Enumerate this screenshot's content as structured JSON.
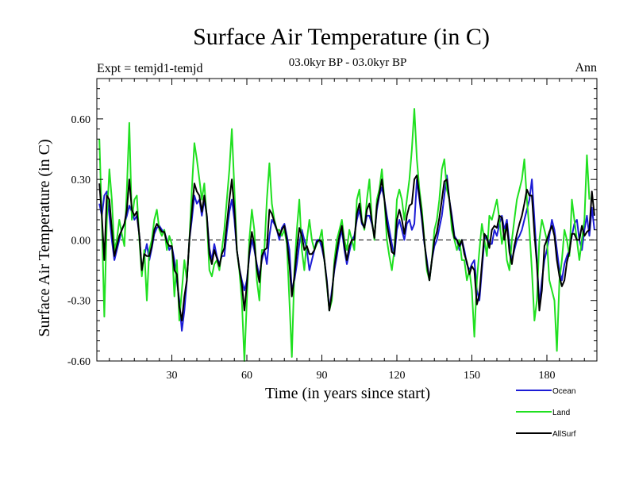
{
  "chart_data": {
    "type": "line",
    "title": "Surface Air Temperature (in C)",
    "subtitle": "03.0kyr BP - 03.0kyr BP",
    "left_label": "Expt = temjd1-temjd",
    "right_label": "Ann",
    "xlabel": "Time (in years since start)",
    "ylabel": "Surface Air Temperature (in C)",
    "xlim": [
      0,
      200
    ],
    "ylim": [
      -0.6,
      0.8
    ],
    "x_ticks": [
      30,
      60,
      90,
      120,
      150,
      180
    ],
    "x_tick_labels": [
      "30",
      "60",
      "90",
      "120",
      "150",
      "180"
    ],
    "y_ticks": [
      -0.6,
      -0.3,
      0.0,
      0.3,
      0.6
    ],
    "y_tick_labels": [
      "-0.60",
      "-0.30",
      "0.00",
      "0.30",
      "0.60"
    ],
    "zero_line": true,
    "legend_position": "bottom-right",
    "x_start": 1,
    "x_step": 1,
    "series": [
      {
        "name": "Ocean",
        "color": "#1c1cd6",
        "values": [
          0.18,
          0.12,
          0.22,
          0.24,
          0.12,
          0.0,
          -0.1,
          -0.05,
          0.0,
          0.05,
          0.08,
          0.12,
          0.17,
          0.14,
          0.1,
          0.12,
          0.02,
          -0.15,
          -0.08,
          -0.02,
          -0.1,
          -0.04,
          0.03,
          0.06,
          0.07,
          0.05,
          0.04,
          0.0,
          -0.05,
          -0.03,
          -0.1,
          -0.2,
          -0.3,
          -0.45,
          -0.35,
          -0.2,
          0.0,
          0.1,
          0.22,
          0.18,
          0.2,
          0.12,
          0.2,
          0.12,
          -0.04,
          -0.1,
          -0.02,
          -0.08,
          -0.12,
          -0.08,
          -0.08,
          0.04,
          0.14,
          0.2,
          0.1,
          -0.05,
          -0.14,
          -0.2,
          -0.25,
          -0.2,
          -0.08,
          0.0,
          -0.05,
          -0.12,
          -0.18,
          -0.1,
          -0.05,
          -0.12,
          0.02,
          0.1,
          0.08,
          0.05,
          0.0,
          0.06,
          0.08,
          0.02,
          -0.05,
          -0.25,
          -0.2,
          -0.12,
          -0.02,
          0.05,
          0.0,
          -0.05,
          -0.15,
          -0.1,
          -0.05,
          0.0,
          0.0,
          -0.04,
          -0.1,
          -0.2,
          -0.35,
          -0.25,
          -0.15,
          -0.08,
          0.0,
          0.05,
          -0.05,
          -0.12,
          -0.06,
          0.0,
          0.02,
          0.1,
          0.15,
          0.08,
          0.06,
          0.12,
          0.12,
          0.08,
          0.02,
          0.15,
          0.22,
          0.26,
          0.2,
          0.12,
          0.05,
          -0.02,
          -0.08,
          0.05,
          0.1,
          0.05,
          0.0,
          0.08,
          0.1,
          0.05,
          0.08,
          0.3,
          0.2,
          0.1,
          -0.02,
          -0.1,
          -0.2,
          -0.1,
          -0.03,
          0.0,
          0.06,
          0.12,
          0.22,
          0.32,
          0.2,
          0.12,
          0.02,
          0.0,
          -0.05,
          0.0,
          -0.05,
          -0.12,
          -0.15,
          -0.12,
          -0.1,
          -0.25,
          -0.3,
          -0.15,
          0.0,
          0.02,
          -0.02,
          -0.02,
          0.05,
          0.02,
          0.08,
          0.12,
          0.05,
          0.1,
          -0.02,
          -0.1,
          -0.05,
          0.0,
          0.02,
          0.05,
          0.1,
          0.15,
          0.2,
          0.3,
          0.1,
          -0.1,
          -0.32,
          -0.2,
          -0.1,
          -0.05,
          0.02,
          0.1,
          0.05,
          -0.05,
          -0.15,
          -0.2,
          -0.12,
          -0.08,
          -0.05,
          0.02,
          0.08,
          0.1,
          0.0,
          -0.05,
          0.05,
          0.12,
          0.02,
          0.16,
          0.05
        ]
      },
      {
        "name": "Land",
        "color": "#20e020",
        "values": [
          0.5,
          0.1,
          -0.38,
          0.1,
          0.35,
          0.2,
          -0.05,
          0.0,
          0.1,
          0.03,
          -0.03,
          0.25,
          0.58,
          0.1,
          0.2,
          0.22,
          0.0,
          -0.18,
          -0.05,
          -0.3,
          -0.05,
          0.0,
          0.1,
          0.15,
          0.05,
          0.02,
          0.05,
          -0.05,
          0.02,
          -0.02,
          -0.28,
          -0.1,
          -0.4,
          -0.25,
          -0.1,
          -0.2,
          0.0,
          0.25,
          0.48,
          0.4,
          0.3,
          0.2,
          0.28,
          0.1,
          -0.15,
          -0.18,
          -0.12,
          -0.1,
          -0.15,
          -0.05,
          0.05,
          0.2,
          0.35,
          0.55,
          0.25,
          -0.05,
          -0.15,
          -0.3,
          -0.6,
          -0.3,
          0.0,
          0.15,
          0.05,
          -0.2,
          -0.3,
          -0.05,
          -0.05,
          0.2,
          0.38,
          0.18,
          0.1,
          0.05,
          0.05,
          0.02,
          0.05,
          -0.02,
          -0.3,
          -0.58,
          -0.15,
          0.05,
          0.2,
          -0.05,
          -0.15,
          0.0,
          0.1,
          0.0,
          -0.05,
          -0.02,
          0.0,
          0.05,
          -0.1,
          -0.22,
          -0.35,
          -0.3,
          -0.1,
          0.0,
          0.05,
          0.1,
          0.0,
          -0.05,
          0.05,
          0.0,
          -0.05,
          0.2,
          0.25,
          0.1,
          0.05,
          0.2,
          0.3,
          0.1,
          0.0,
          0.2,
          0.25,
          0.35,
          0.2,
          0.0,
          -0.08,
          -0.15,
          -0.05,
          0.2,
          0.25,
          0.2,
          0.1,
          0.2,
          0.3,
          0.45,
          0.65,
          0.4,
          0.25,
          0.15,
          0.0,
          -0.15,
          -0.2,
          -0.1,
          0.05,
          0.1,
          0.2,
          0.35,
          0.4,
          0.25,
          0.2,
          0.05,
          0.0,
          -0.05,
          0.0,
          -0.1,
          -0.1,
          -0.2,
          -0.15,
          -0.25,
          -0.48,
          -0.2,
          -0.05,
          0.08,
          0.0,
          -0.08,
          0.12,
          0.1,
          0.15,
          0.2,
          0.1,
          -0.02,
          0.05,
          -0.1,
          -0.15,
          0.0,
          0.1,
          0.2,
          0.25,
          0.3,
          0.4,
          0.2,
          0.05,
          -0.15,
          -0.4,
          -0.3,
          0.0,
          0.1,
          0.05,
          0.0,
          -0.2,
          -0.25,
          -0.3,
          -0.55,
          -0.2,
          -0.1,
          0.05,
          0.0,
          -0.08,
          0.2,
          0.1,
          0.0,
          -0.1,
          0.0,
          0.1,
          0.42,
          0.2
        ]
      },
      {
        "name": "AllSurf",
        "color": "#000000",
        "values": [
          0.28,
          0.12,
          -0.1,
          0.22,
          0.2,
          0.05,
          -0.08,
          -0.03,
          0.02,
          0.05,
          0.08,
          0.15,
          0.3,
          0.15,
          0.12,
          0.14,
          0.02,
          -0.15,
          -0.07,
          -0.08,
          -0.08,
          -0.03,
          0.05,
          0.08,
          0.06,
          0.04,
          0.04,
          -0.01,
          -0.03,
          -0.03,
          -0.15,
          -0.17,
          -0.33,
          -0.4,
          -0.28,
          -0.2,
          0.0,
          0.14,
          0.28,
          0.24,
          0.22,
          0.14,
          0.22,
          0.12,
          -0.07,
          -0.12,
          -0.05,
          -0.09,
          -0.13,
          -0.07,
          -0.04,
          0.08,
          0.2,
          0.3,
          0.15,
          -0.05,
          -0.14,
          -0.22,
          -0.35,
          -0.22,
          -0.06,
          0.04,
          -0.02,
          -0.14,
          -0.21,
          -0.08,
          -0.05,
          -0.04,
          0.15,
          0.13,
          0.09,
          0.05,
          0.02,
          0.05,
          0.07,
          0.0,
          -0.12,
          -0.28,
          -0.18,
          -0.05,
          0.06,
          0.02,
          -0.05,
          -0.03,
          -0.07,
          -0.07,
          -0.05,
          -0.01,
          0.0,
          -0.01,
          -0.1,
          -0.21,
          -0.35,
          -0.27,
          -0.13,
          -0.05,
          0.02,
          0.07,
          -0.03,
          -0.1,
          -0.03,
          0.0,
          0.0,
          0.13,
          0.18,
          0.09,
          0.06,
          0.15,
          0.18,
          0.09,
          0.01,
          0.17,
          0.23,
          0.3,
          0.2,
          0.08,
          0.01,
          -0.06,
          -0.07,
          0.1,
          0.15,
          0.1,
          0.03,
          0.12,
          0.17,
          0.18,
          0.3,
          0.32,
          0.22,
          0.12,
          -0.01,
          -0.12,
          -0.2,
          -0.1,
          0.0,
          0.04,
          0.11,
          0.2,
          0.29,
          0.3,
          0.2,
          0.1,
          0.01,
          0.0,
          -0.03,
          0.0,
          -0.07,
          -0.11,
          -0.17,
          -0.13,
          -0.15,
          -0.32,
          -0.27,
          -0.12,
          0.03,
          0.01,
          -0.04,
          0.05,
          0.07,
          0.06,
          0.12,
          0.11,
          0.0,
          0.08,
          -0.06,
          -0.12,
          -0.03,
          0.03,
          0.08,
          0.12,
          0.18,
          0.25,
          0.22,
          0.22,
          0.03,
          -0.12,
          -0.35,
          -0.25,
          -0.03,
          0.0,
          0.04,
          0.07,
          0.02,
          -0.1,
          -0.18,
          -0.23,
          -0.2,
          -0.11,
          -0.06,
          0.03,
          0.03,
          0.0,
          0.0,
          0.07,
          0.02,
          0.04,
          0.05,
          0.24,
          0.12
        ]
      }
    ]
  }
}
